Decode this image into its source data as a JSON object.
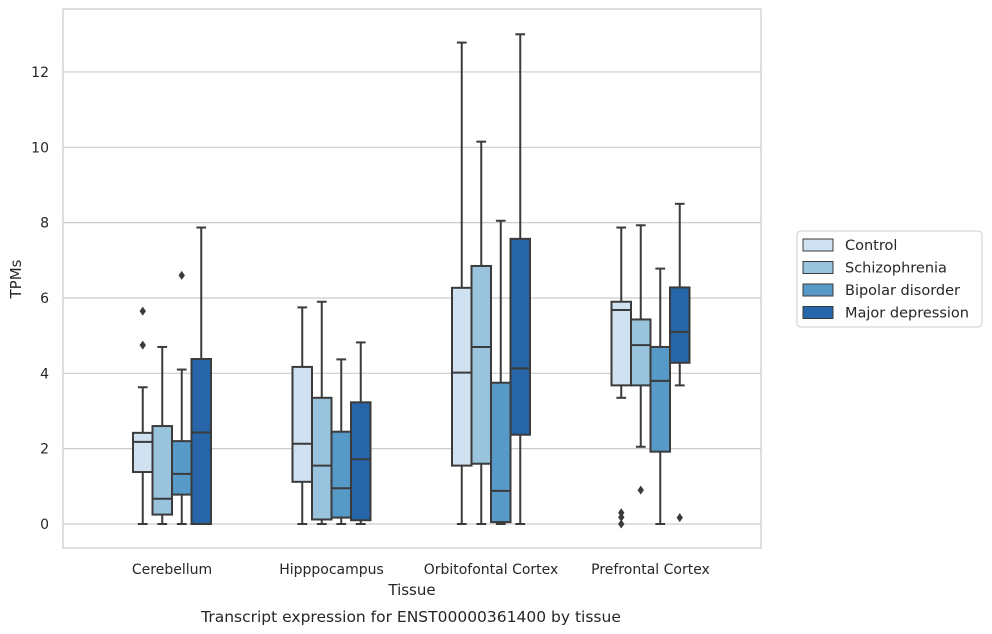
{
  "chart_data": {
    "type": "box",
    "title": "",
    "caption": "Transcript expression for ENST00000361400 by tissue",
    "xlabel": "Tissue",
    "ylabel": "TPMs",
    "ylim": [
      -0.65,
      13.4
    ],
    "yticks": [
      0,
      2,
      4,
      6,
      8,
      10,
      12
    ],
    "grid": "horizontal",
    "legend_position": "right",
    "categories": [
      "Cerebellum",
      "Hipppocampus",
      "Orbitofontal Cortex",
      "Prefrontal Cortex"
    ],
    "series": [
      {
        "name": "Control",
        "color": "#d0e1f2",
        "boxes": [
          {
            "whislo": 0,
            "q1": 1.38,
            "med": 2.18,
            "q3": 2.42,
            "whishi": 3.63,
            "fliers": [
              4.75,
              5.65
            ]
          },
          {
            "whislo": 0,
            "q1": 1.12,
            "med": 2.13,
            "q3": 4.17,
            "whishi": 5.75,
            "fliers": []
          },
          {
            "whislo": 0,
            "q1": 1.55,
            "med": 4.02,
            "q3": 6.27,
            "whishi": 12.78,
            "fliers": []
          },
          {
            "whislo": 3.35,
            "q1": 3.68,
            "med": 5.68,
            "q3": 5.9,
            "whishi": 7.87,
            "fliers": [
              0,
              0.18,
              0.3
            ]
          }
        ]
      },
      {
        "name": "Schizophrenia",
        "color": "#9ac3de",
        "boxes": [
          {
            "whislo": 0,
            "q1": 0.25,
            "med": 0.67,
            "q3": 2.6,
            "whishi": 4.7,
            "fliers": []
          },
          {
            "whislo": 0,
            "q1": 0.12,
            "med": 1.55,
            "q3": 3.35,
            "whishi": 5.9,
            "fliers": []
          },
          {
            "whislo": 0,
            "q1": 1.6,
            "med": 4.7,
            "q3": 6.85,
            "whishi": 10.15,
            "fliers": []
          },
          {
            "whislo": 2.05,
            "q1": 3.68,
            "med": 4.75,
            "q3": 5.43,
            "whishi": 7.93,
            "fliers": [
              0.9
            ]
          }
        ]
      },
      {
        "name": "Bipolar disorder",
        "color": "#5799c7",
        "boxes": [
          {
            "whislo": 0,
            "q1": 0.78,
            "med": 1.33,
            "q3": 2.2,
            "whishi": 4.1,
            "fliers": [
              6.6
            ]
          },
          {
            "whislo": 0,
            "q1": 0.17,
            "med": 0.95,
            "q3": 2.45,
            "whishi": 4.37,
            "fliers": []
          },
          {
            "whislo": 0,
            "q1": 0.05,
            "med": 0.88,
            "q3": 3.75,
            "whishi": 8.05,
            "fliers": []
          },
          {
            "whislo": 0,
            "q1": 1.92,
            "med": 3.8,
            "q3": 4.7,
            "whishi": 6.78,
            "fliers": []
          }
        ]
      },
      {
        "name": "Major depression",
        "color": "#2666a8",
        "boxes": [
          {
            "whislo": 0,
            "q1": 0,
            "med": 2.43,
            "q3": 4.38,
            "whishi": 7.87,
            "fliers": []
          },
          {
            "whislo": 0,
            "q1": 0.1,
            "med": 1.72,
            "q3": 3.23,
            "whishi": 4.82,
            "fliers": []
          },
          {
            "whislo": 0,
            "q1": 2.37,
            "med": 4.13,
            "q3": 7.57,
            "whishi": 13.0,
            "fliers": []
          },
          {
            "whislo": 3.68,
            "q1": 4.28,
            "med": 5.1,
            "q3": 6.28,
            "whishi": 8.5,
            "fliers": [
              0.17
            ]
          }
        ]
      }
    ]
  }
}
